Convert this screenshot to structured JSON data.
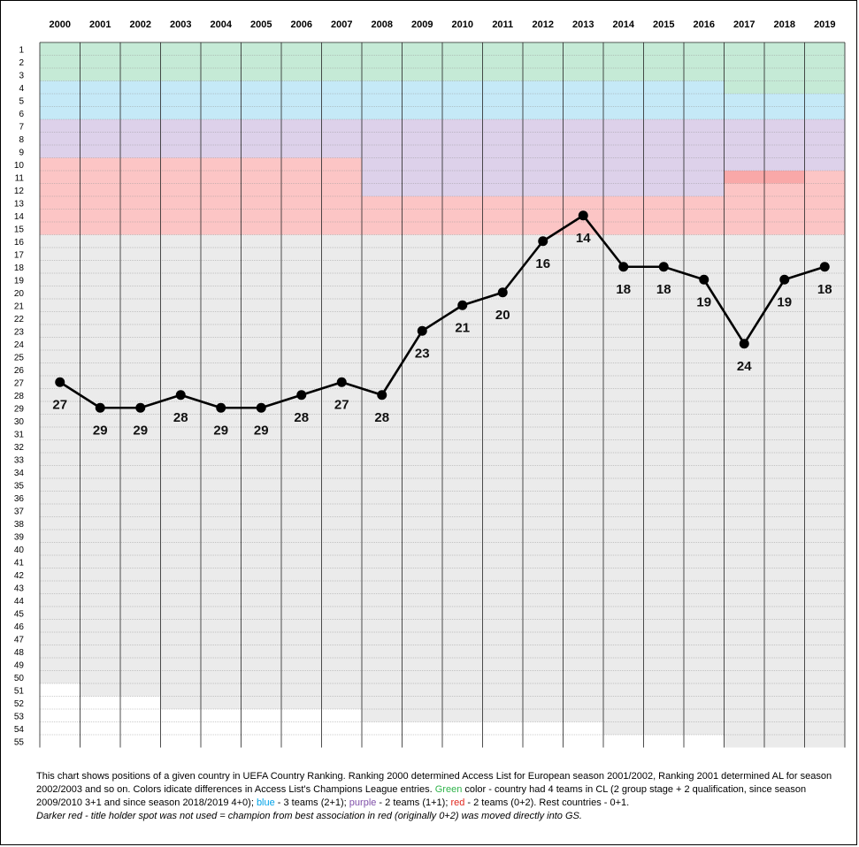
{
  "chart_data": {
    "type": "line",
    "title": "",
    "xlabel": "",
    "ylabel": "",
    "x": [
      "2000",
      "2001",
      "2002",
      "2003",
      "2004",
      "2005",
      "2006",
      "2007",
      "2008",
      "2009",
      "2010",
      "2011",
      "2012",
      "2013",
      "2014",
      "2015",
      "2016",
      "2017",
      "2018",
      "2019"
    ],
    "values": [
      27,
      29,
      29,
      28,
      29,
      29,
      28,
      27,
      28,
      23,
      21,
      20,
      16,
      14,
      18,
      18,
      19,
      24,
      19,
      18
    ],
    "y_ticks": [
      "1",
      "2",
      "3",
      "4",
      "5",
      "6",
      "7",
      "8",
      "9",
      "10",
      "11",
      "12",
      "13",
      "14",
      "15",
      "16",
      "17",
      "18",
      "19",
      "20",
      "21",
      "22",
      "23",
      "24",
      "25",
      "26",
      "27",
      "28",
      "29",
      "30",
      "31",
      "32",
      "33",
      "34",
      "35",
      "36",
      "37",
      "38",
      "39",
      "40",
      "41",
      "42",
      "43",
      "44",
      "45",
      "46",
      "47",
      "48",
      "49",
      "50",
      "51",
      "52",
      "53",
      "54",
      "55"
    ],
    "ylim": [
      1,
      55
    ],
    "y_inverted": true,
    "grid": true,
    "legend": "none",
    "colors": {
      "green_band": "#c5ead6",
      "blue_band": "#c5e9f7",
      "purple_band": "#ddd1ea",
      "red_band": "#fcc5c5",
      "dark_red_band": "#f9a8a8",
      "rest_band": "#ebebeb",
      "line": "#000000"
    },
    "bands": [
      {
        "year": "2000",
        "green": [
          1,
          3
        ],
        "blue": [
          4,
          6
        ],
        "purple": [
          7,
          9
        ],
        "red": [
          10,
          15
        ],
        "gray_to": 50
      },
      {
        "year": "2001",
        "green": [
          1,
          3
        ],
        "blue": [
          4,
          6
        ],
        "purple": [
          7,
          9
        ],
        "red": [
          10,
          15
        ],
        "gray_to": 51
      },
      {
        "year": "2002",
        "green": [
          1,
          3
        ],
        "blue": [
          4,
          6
        ],
        "purple": [
          7,
          9
        ],
        "red": [
          10,
          15
        ],
        "gray_to": 51
      },
      {
        "year": "2003",
        "green": [
          1,
          3
        ],
        "blue": [
          4,
          6
        ],
        "purple": [
          7,
          9
        ],
        "red": [
          10,
          15
        ],
        "gray_to": 52
      },
      {
        "year": "2004",
        "green": [
          1,
          3
        ],
        "blue": [
          4,
          6
        ],
        "purple": [
          7,
          9
        ],
        "red": [
          10,
          15
        ],
        "gray_to": 52
      },
      {
        "year": "2005",
        "green": [
          1,
          3
        ],
        "blue": [
          4,
          6
        ],
        "purple": [
          7,
          9
        ],
        "red": [
          10,
          15
        ],
        "gray_to": 52
      },
      {
        "year": "2006",
        "green": [
          1,
          3
        ],
        "blue": [
          4,
          6
        ],
        "purple": [
          7,
          9
        ],
        "red": [
          10,
          15
        ],
        "gray_to": 52
      },
      {
        "year": "2007",
        "green": [
          1,
          3
        ],
        "blue": [
          4,
          6
        ],
        "purple": [
          7,
          9
        ],
        "red": [
          10,
          15
        ],
        "gray_to": 52
      },
      {
        "year": "2008",
        "green": [
          1,
          3
        ],
        "blue": [
          4,
          6
        ],
        "purple": [
          7,
          12
        ],
        "red": [
          13,
          15
        ],
        "gray_to": 53
      },
      {
        "year": "2009",
        "green": [
          1,
          3
        ],
        "blue": [
          4,
          6
        ],
        "purple": [
          7,
          12
        ],
        "red": [
          13,
          15
        ],
        "gray_to": 53
      },
      {
        "year": "2010",
        "green": [
          1,
          3
        ],
        "blue": [
          4,
          6
        ],
        "purple": [
          7,
          12
        ],
        "red": [
          13,
          15
        ],
        "gray_to": 53
      },
      {
        "year": "2011",
        "green": [
          1,
          3
        ],
        "blue": [
          4,
          6
        ],
        "purple": [
          7,
          12
        ],
        "red": [
          13,
          15
        ],
        "gray_to": 53
      },
      {
        "year": "2012",
        "green": [
          1,
          3
        ],
        "blue": [
          4,
          6
        ],
        "purple": [
          7,
          12
        ],
        "red": [
          13,
          15
        ],
        "gray_to": 53
      },
      {
        "year": "2013",
        "green": [
          1,
          3
        ],
        "blue": [
          4,
          6
        ],
        "purple": [
          7,
          12
        ],
        "red": [
          13,
          15
        ],
        "gray_to": 53
      },
      {
        "year": "2014",
        "green": [
          1,
          3
        ],
        "blue": [
          4,
          6
        ],
        "purple": [
          7,
          12
        ],
        "red": [
          13,
          15
        ],
        "gray_to": 54
      },
      {
        "year": "2015",
        "green": [
          1,
          3
        ],
        "blue": [
          4,
          6
        ],
        "purple": [
          7,
          12
        ],
        "red": [
          13,
          15
        ],
        "gray_to": 54
      },
      {
        "year": "2016",
        "green": [
          1,
          3
        ],
        "blue": [
          4,
          6
        ],
        "purple": [
          7,
          12
        ],
        "red": [
          13,
          15
        ],
        "gray_to": 54
      },
      {
        "year": "2017",
        "green": [
          1,
          4
        ],
        "blue": [
          5,
          6
        ],
        "purple": [
          7,
          10
        ],
        "red": [
          11,
          15
        ],
        "dark_red": [
          11,
          11
        ],
        "gray_to": 55
      },
      {
        "year": "2018",
        "green": [
          1,
          4
        ],
        "blue": [
          5,
          6
        ],
        "purple": [
          7,
          10
        ],
        "red": [
          11,
          15
        ],
        "dark_red": [
          11,
          11
        ],
        "gray_to": 55
      },
      {
        "year": "2019",
        "green": [
          1,
          4
        ],
        "blue": [
          5,
          6
        ],
        "purple": [
          7,
          10
        ],
        "red": [
          11,
          15
        ],
        "gray_to": 55
      }
    ]
  },
  "caption": {
    "part1": "This chart shows positions of a given country in  UEFA Country Ranking.  Ranking 2000 determined Access List for European season 2001/2002, Ranking 2001 determined AL for season 2002/2003 and so on.  Colors idicate differences in Access List's Champions League entries.  ",
    "green_word": "Green",
    "part2": " color - country had 4 teams in CL (2 group stage + 2 qualification, since season 2009/2010 3+1 and since season 2018/2019  4+0); ",
    "blue_word": "blue",
    "part3": " - 3 teams  (2+1); ",
    "purple_word": "purple",
    "part4": " - 2 teams (1+1); ",
    "red_word": "red",
    "part5": " - 2 teams (0+2). Rest countries - 0+1.",
    "note": "Darker red - title holder spot was not used = champion from best association in red (originally 0+2) was moved directly  into GS."
  }
}
